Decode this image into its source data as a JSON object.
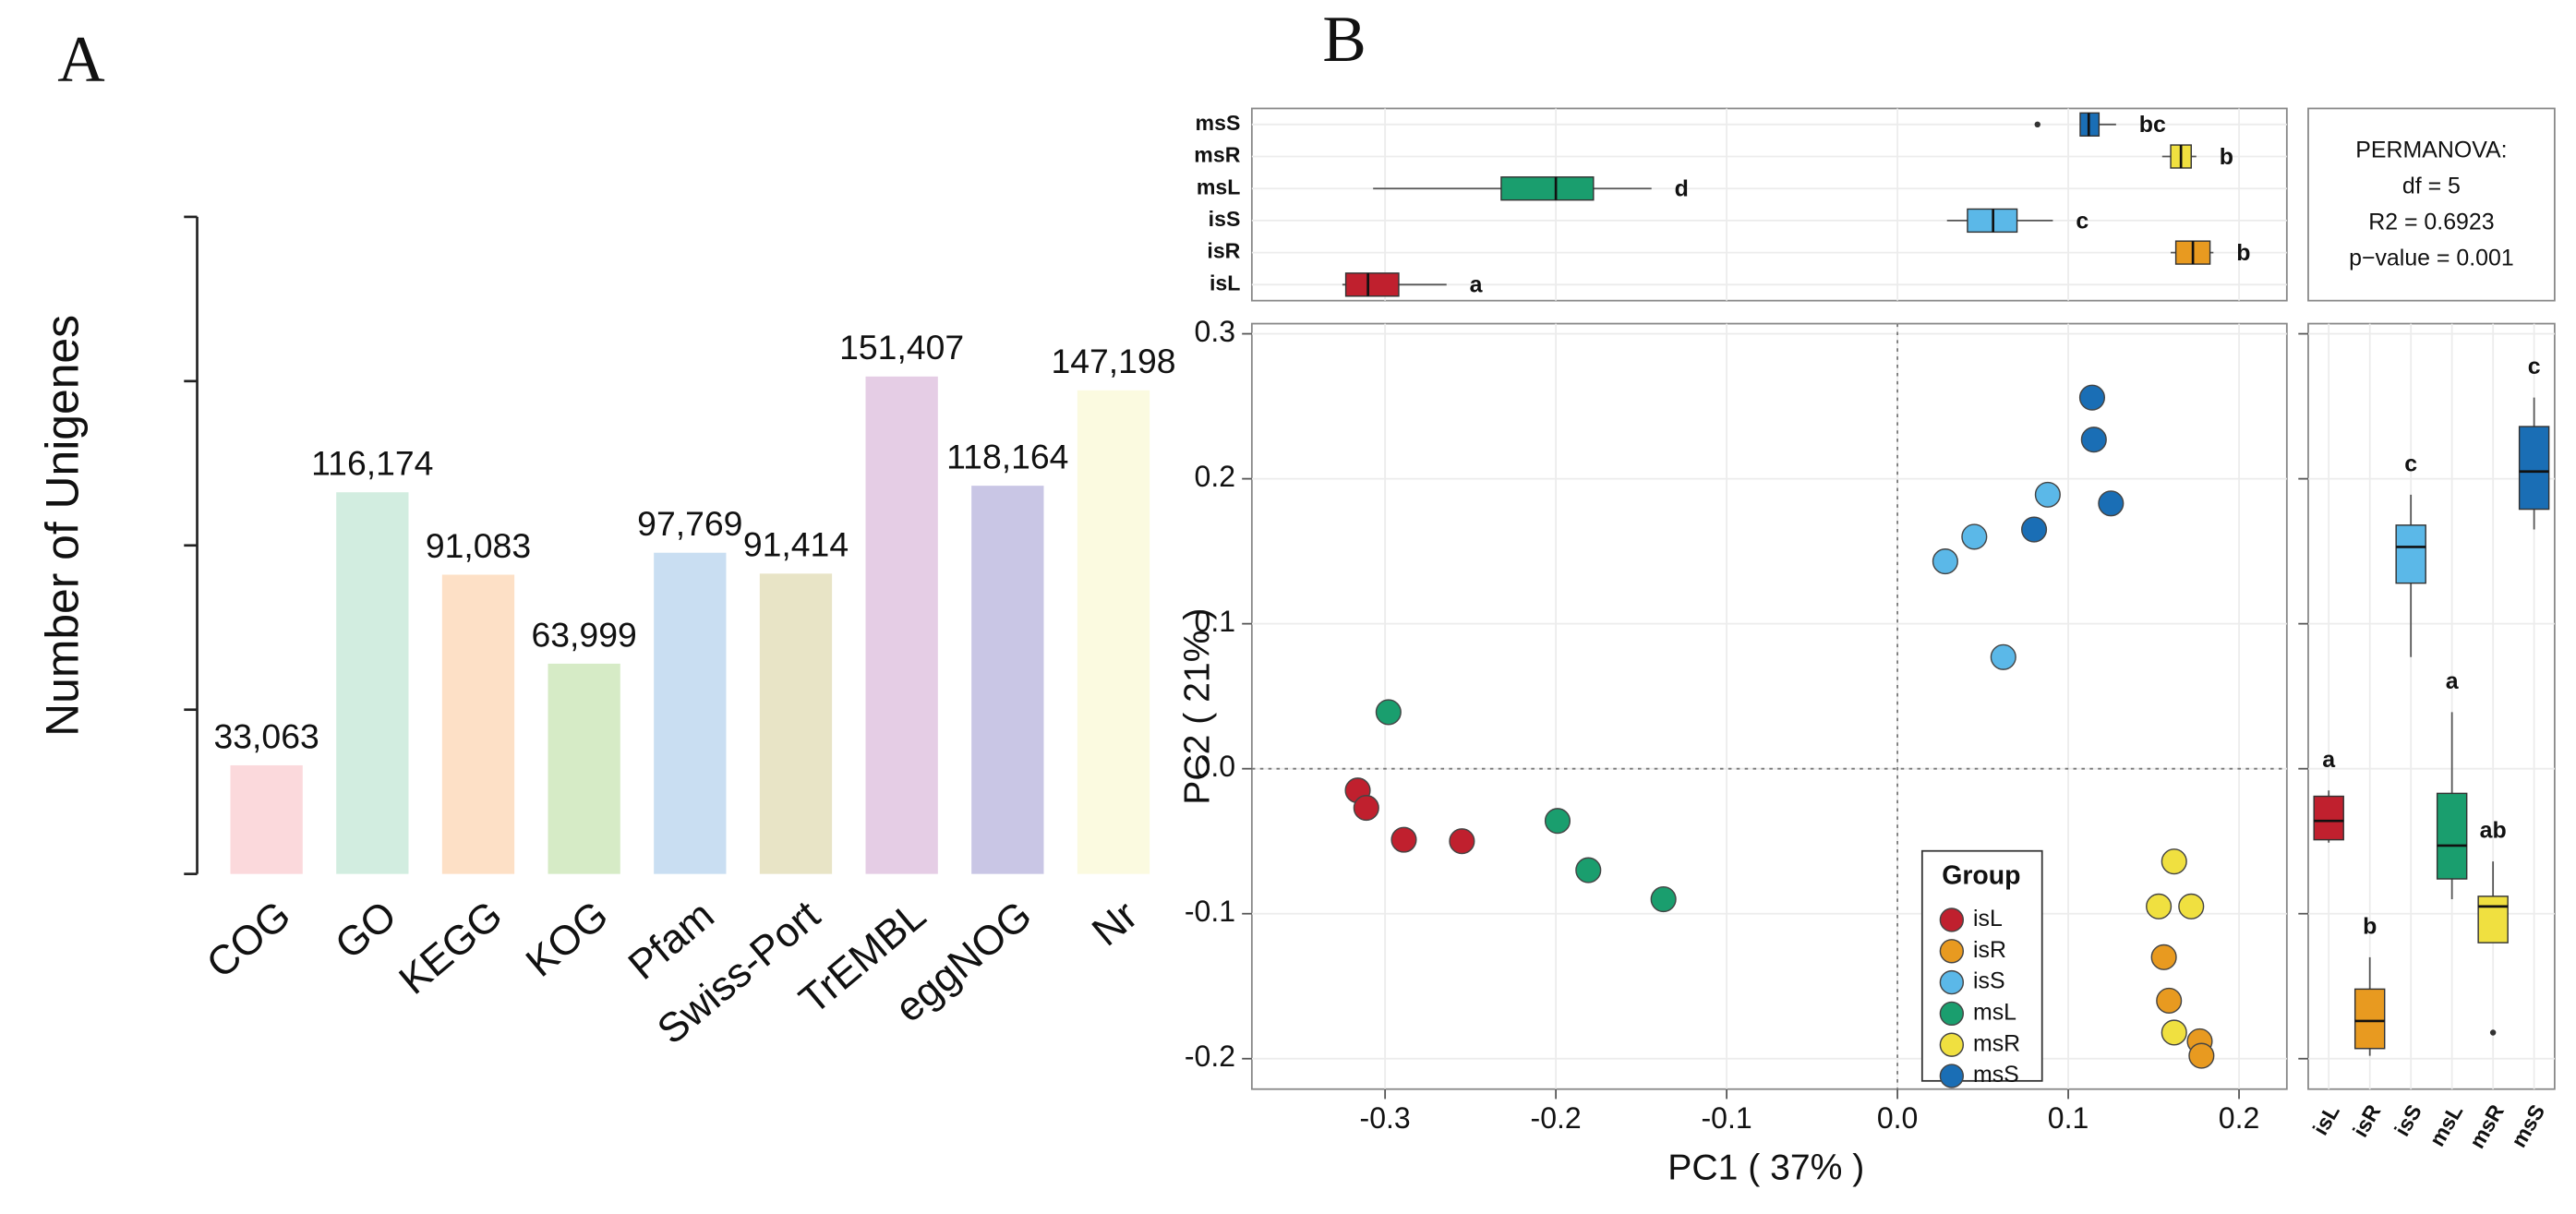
{
  "chart_data": [
    {
      "type": "bar",
      "panel": "A",
      "ylabel": "Number of Unigenes",
      "categories": [
        "COG",
        "GO",
        "KEGG",
        "KOG",
        "Pfam",
        "Swiss-Port",
        "TrEMBL",
        "eggNOG",
        "Nr"
      ],
      "values": [
        33063,
        116174,
        91083,
        63999,
        97769,
        91414,
        151407,
        118164,
        147198
      ],
      "value_labels": [
        "33,063",
        "116,174",
        "91,083",
        "63,999",
        "97,769",
        "91,414",
        "151,407",
        "118,164",
        "147,198"
      ],
      "colors": [
        "#fbd9dc",
        "#d2ede0",
        "#fde0c6",
        "#d6ebc6",
        "#c9def2",
        "#e8e4c6",
        "#e5cde5",
        "#c9c6e5",
        "#fbfae0"
      ],
      "ylim": [
        0,
        200000
      ],
      "yticks": [
        0,
        50000,
        100000,
        150000,
        200000
      ]
    },
    {
      "type": "scatter",
      "panel": "B",
      "xlabel": "PC1 ( 37% )",
      "ylabel": "PC2 ( 21% )",
      "xlim": [
        -0.378,
        0.228
      ],
      "ylim": [
        -0.221,
        0.307
      ],
      "xticks": [
        -0.3,
        -0.2,
        -0.1,
        {
          "value": 0,
          "label": "0.0"
        },
        0.1,
        0.2
      ],
      "yticks": [
        -0.2,
        -0.1,
        {
          "value": 0,
          "label": "0.0"
        },
        0.1,
        0.2,
        0.3
      ],
      "reference_lines": {
        "x": 0,
        "y": 0
      },
      "legend_title": "Group",
      "annotation": [
        "PERMANOVA:",
        "df = 5",
        "R2 = 0.6923",
        "p−value = 0.001"
      ],
      "series": [
        {
          "name": "isL",
          "color": "#c0202e",
          "x": [
            -0.316,
            -0.311,
            -0.289,
            -0.255
          ],
          "y": [
            -0.015,
            -0.027,
            -0.049,
            -0.05
          ]
        },
        {
          "name": "isR",
          "color": "#e89a20",
          "x": [
            0.156,
            0.159,
            0.177,
            0.178
          ],
          "y": [
            -0.13,
            -0.16,
            -0.188,
            -0.198
          ]
        },
        {
          "name": "isS",
          "color": "#5bb8e8",
          "x": [
            0.028,
            0.045,
            0.088,
            0.062
          ],
          "y": [
            0.143,
            0.16,
            0.189,
            0.077
          ]
        },
        {
          "name": "msL",
          "color": "#1a9e6e",
          "x": [
            -0.298,
            -0.199,
            -0.181,
            -0.137
          ],
          "y": [
            0.039,
            -0.036,
            -0.07,
            -0.09
          ]
        },
        {
          "name": "msR",
          "color": "#f0e040",
          "x": [
            0.162,
            0.153,
            0.172,
            0.162
          ],
          "y": [
            -0.064,
            -0.095,
            -0.095,
            -0.182
          ]
        },
        {
          "name": "msS",
          "color": "#1a6eb5",
          "x": [
            0.114,
            0.115,
            0.125,
            0.08
          ],
          "y": [
            0.256,
            0.227,
            0.183,
            0.165
          ]
        }
      ]
    },
    {
      "type": "boxplot",
      "orientation": "horizontal",
      "xlim": [
        -0.378,
        0.228
      ],
      "xticks": [
        -0.3,
        -0.2,
        -0.1,
        0,
        0.1,
        0.2
      ],
      "categories": [
        "isL",
        "isR",
        "isS",
        "msL",
        "msR",
        "msS"
      ],
      "colors": [
        "#c0202e",
        "#e89a20",
        "#5bb8e8",
        "#1a9e6e",
        "#f0e040",
        "#1a6eb5"
      ],
      "boxes": [
        {
          "min": -0.325,
          "q1": -0.323,
          "median": -0.31,
          "q3": -0.292,
          "max": -0.264,
          "outliers": [],
          "letter": "a"
        },
        {
          "min": 0.16,
          "q1": 0.163,
          "median": 0.173,
          "q3": 0.183,
          "max": 0.185,
          "outliers": [],
          "letter": "b"
        },
        {
          "min": 0.029,
          "q1": 0.041,
          "median": 0.056,
          "q3": 0.07,
          "max": 0.091,
          "outliers": [],
          "letter": "c"
        },
        {
          "min": -0.307,
          "q1": -0.232,
          "median": -0.2,
          "q3": -0.178,
          "max": -0.144,
          "outliers": [],
          "letter": "d"
        },
        {
          "min": 0.155,
          "q1": 0.16,
          "median": 0.166,
          "q3": 0.172,
          "max": 0.175,
          "outliers": [],
          "letter": "b"
        },
        {
          "min": 0.107,
          "q1": 0.107,
          "median": 0.112,
          "q3": 0.118,
          "max": 0.128,
          "outliers": [
            0.082
          ],
          "letter": "bc"
        }
      ]
    },
    {
      "type": "boxplot",
      "orientation": "vertical",
      "ylim": [
        -0.221,
        0.307
      ],
      "yticks": [
        -0.2,
        -0.1,
        0,
        0.1,
        0.2,
        0.3
      ],
      "categories": [
        "isL",
        "isR",
        "isS",
        "msL",
        "msR",
        "msS"
      ],
      "colors": [
        "#c0202e",
        "#e89a20",
        "#5bb8e8",
        "#1a9e6e",
        "#f0e040",
        "#1a6eb5"
      ],
      "boxes": [
        {
          "min": -0.051,
          "q1": -0.049,
          "median": -0.036,
          "q3": -0.019,
          "max": -0.015,
          "outliers": [],
          "letter": "a"
        },
        {
          "min": -0.198,
          "q1": -0.193,
          "median": -0.174,
          "q3": -0.152,
          "max": -0.13,
          "outliers": [],
          "letter": "b"
        },
        {
          "min": 0.077,
          "q1": 0.128,
          "median": 0.153,
          "q3": 0.168,
          "max": 0.189,
          "outliers": [],
          "letter": "c"
        },
        {
          "min": -0.09,
          "q1": -0.076,
          "median": -0.053,
          "q3": -0.017,
          "max": 0.039,
          "outliers": [],
          "letter": "a"
        },
        {
          "min": -0.12,
          "q1": -0.12,
          "median": -0.095,
          "q3": -0.088,
          "max": -0.064,
          "outliers": [
            -0.182
          ],
          "letter": "ab"
        },
        {
          "min": 0.165,
          "q1": 0.179,
          "median": 0.205,
          "q3": 0.236,
          "max": 0.256,
          "outliers": [],
          "letter": "c"
        }
      ]
    }
  ]
}
